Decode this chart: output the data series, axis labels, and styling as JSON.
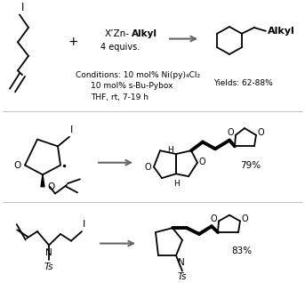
{
  "background_color": "#ffffff",
  "text_color": "#000000",
  "conditions_line1": "Conditions: 10 mol% Ni(py)₄Cl₂",
  "conditions_line2": "10 mol% s-Bu-Pybox",
  "conditions_line3": "THF, rt, 7-19 h",
  "yields_top": "Yields: 62-88%",
  "yield_middle": "79%",
  "yield_bottom": "83%",
  "equivs": "4 equivs.",
  "alkyl_label": "Alkyl",
  "plus": "+",
  "arrow_color": "#666666",
  "line_width": 1.3,
  "bold_lw": 2.8
}
